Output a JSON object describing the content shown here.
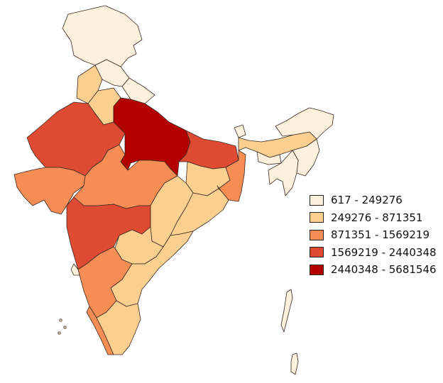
{
  "map": {
    "legend": [
      {
        "label": "617 - 249276",
        "color": "#fdf0dc"
      },
      {
        "label": "249276 - 871351",
        "color": "#fbcf8f"
      },
      {
        "label": "871351 - 1569219",
        "color": "#f58d55"
      },
      {
        "label": "1569219 - 2440348",
        "color": "#de4b32"
      },
      {
        "label": "2440348 - 5681546",
        "color": "#b30000"
      }
    ]
  }
}
